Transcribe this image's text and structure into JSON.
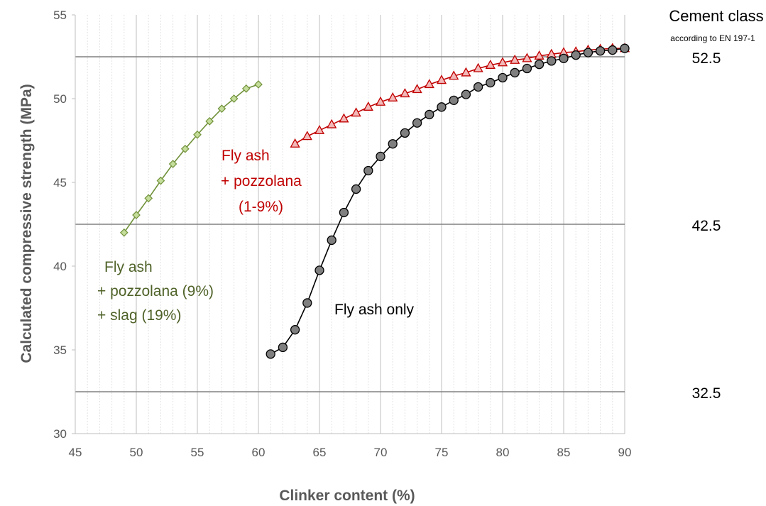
{
  "chart_data": {
    "type": "line",
    "xlabel": "Clinker content (%)",
    "ylabel": "Calculated compressive strength (MPa)",
    "xlim": [
      45,
      90
    ],
    "ylim": [
      30,
      55
    ],
    "x_ticks": [
      "45",
      "50",
      "55",
      "60",
      "65",
      "70",
      "75",
      "80",
      "85",
      "90"
    ],
    "y_ticks": [
      "30",
      "35",
      "40",
      "45",
      "50",
      "55"
    ],
    "grid": "vertical major and minor gridlines",
    "cement_class": {
      "title": "Cement class",
      "subtitle": "according to EN 197-1",
      "levels": [
        {
          "label": "52.5",
          "value": 52.5
        },
        {
          "label": "42.5",
          "value": 42.5
        },
        {
          "label": "32.5",
          "value": 32.5
        }
      ]
    },
    "series": [
      {
        "marker": "diamond",
        "color": "#70913a",
        "fill": "#c5dd9a",
        "annotation": [
          "Fly ash",
          "+ pozzolana (9%)",
          "+ slag (19%)"
        ],
        "x": [
          49,
          50,
          51,
          52,
          53,
          54,
          55,
          56,
          57,
          58,
          59,
          60
        ],
        "y": [
          42.0,
          43.05,
          44.05,
          45.1,
          46.1,
          47.0,
          47.85,
          48.65,
          49.4,
          50.0,
          50.6,
          50.85
        ]
      },
      {
        "marker": "triangle",
        "color": "#c00000",
        "fill": "#f2b9b9",
        "annotation": [
          "Fly ash",
          "+ pozzolana",
          "(1-9%)"
        ],
        "x": [
          63,
          64,
          65,
          66,
          67,
          68,
          69,
          70,
          71,
          72,
          73,
          74,
          75,
          76,
          77,
          78,
          79,
          80,
          81,
          82,
          83,
          84,
          85,
          86,
          87,
          88,
          89,
          90
        ],
        "y": [
          47.3,
          47.75,
          48.1,
          48.45,
          48.8,
          49.15,
          49.5,
          49.8,
          50.05,
          50.3,
          50.55,
          50.85,
          51.1,
          51.35,
          51.55,
          51.8,
          52.0,
          52.15,
          52.3,
          52.4,
          52.55,
          52.65,
          52.75,
          52.8,
          52.9,
          52.95,
          53.0,
          53.0
        ]
      },
      {
        "marker": "circle",
        "color": "#000000",
        "fill": "#7f7f7f",
        "annotation": [
          "Fly ash only"
        ],
        "x": [
          61,
          62,
          63,
          64,
          65,
          66,
          67,
          68,
          69,
          70,
          71,
          72,
          73,
          74,
          75,
          76,
          77,
          78,
          79,
          80,
          81,
          82,
          83,
          84,
          85,
          86,
          87,
          88,
          89,
          90
        ],
        "y": [
          34.75,
          35.15,
          36.2,
          37.8,
          39.75,
          41.55,
          43.2,
          44.6,
          45.7,
          46.55,
          47.3,
          47.95,
          48.55,
          49.05,
          49.5,
          49.9,
          50.25,
          50.7,
          50.95,
          51.25,
          51.55,
          51.8,
          52.05,
          52.25,
          52.4,
          52.6,
          52.75,
          52.85,
          52.9,
          53.0
        ]
      }
    ]
  }
}
